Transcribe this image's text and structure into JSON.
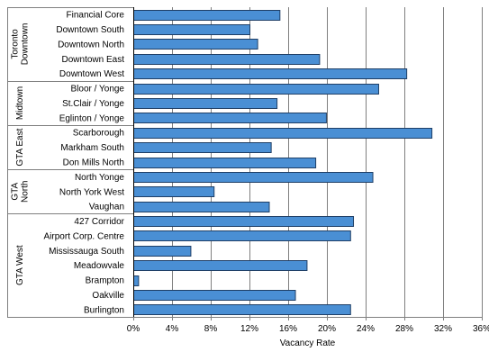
{
  "chart_data": {
    "type": "bar",
    "orientation": "horizontal",
    "xlabel": "Vacancy Rate",
    "xlim": [
      0,
      36
    ],
    "xticks": [
      "0%",
      "4%",
      "8%",
      "12%",
      "16%",
      "20%",
      "24%",
      "28%",
      "32%",
      "36%"
    ],
    "xtick_values": [
      0,
      4,
      8,
      12,
      16,
      20,
      24,
      28,
      32,
      36
    ],
    "grid": "vertical",
    "colors": {
      "bar_fill": "#4a8fd4",
      "bar_stroke": "#1f3f66"
    },
    "groups": [
      {
        "label_lines": [
          "Toronto",
          "Downtown"
        ],
        "start": 0,
        "count": 5
      },
      {
        "label_lines": [
          "Midtown"
        ],
        "start": 5,
        "count": 3
      },
      {
        "label_lines": [
          "GTA East"
        ],
        "start": 8,
        "count": 3
      },
      {
        "label_lines": [
          "GTA",
          "North"
        ],
        "start": 11,
        "count": 3
      },
      {
        "label_lines": [
          "GTA West"
        ],
        "start": 14,
        "count": 7
      }
    ],
    "categories": [
      "Financial Core",
      "Downtown South",
      "Downtown North",
      "Downtown East",
      "Downtown West",
      "Bloor / Yonge",
      "St.Clair / Yonge",
      "Eglinton / Yonge",
      "Scarborough",
      "Markham South",
      "Don Mills North",
      "North Yonge",
      "North York West",
      "Vaughan",
      "427 Corridor",
      "Airport Corp. Centre",
      "Mississauga South",
      "Meadowvale",
      "Brampton",
      "Oakville",
      "Burlington"
    ],
    "values": [
      15.1,
      12.0,
      12.8,
      19.2,
      28.2,
      25.3,
      14.8,
      19.9,
      30.8,
      14.2,
      18.8,
      24.7,
      8.3,
      14.0,
      22.7,
      22.4,
      5.9,
      17.9,
      0.5,
      16.7,
      22.4
    ]
  }
}
